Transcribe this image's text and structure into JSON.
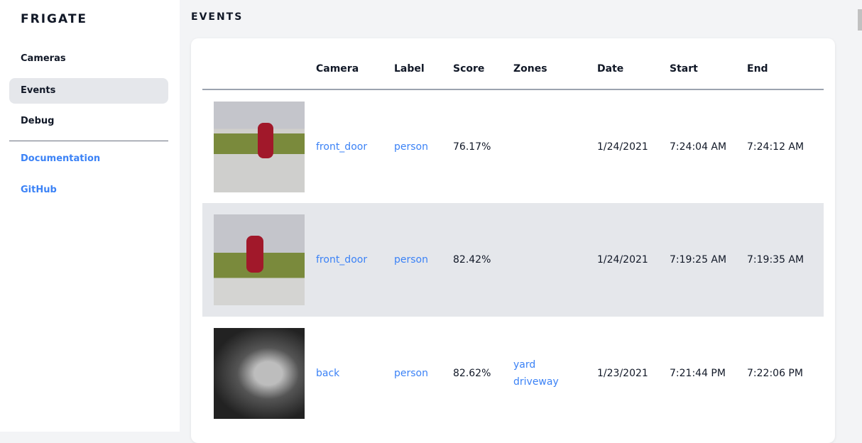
{
  "sidebar": {
    "brand": "FRIGATE",
    "items": [
      {
        "label": "Cameras"
      },
      {
        "label": "Events"
      },
      {
        "label": "Debug"
      }
    ],
    "links": [
      {
        "label": "Documentation"
      },
      {
        "label": "GitHub"
      }
    ]
  },
  "page": {
    "title": "EVENTS"
  },
  "table": {
    "headers": [
      "",
      "Camera",
      "Label",
      "Score",
      "Zones",
      "Date",
      "Start",
      "End"
    ],
    "rows": [
      {
        "camera": "front_door",
        "label": "person",
        "score": "76.17%",
        "zones": [
          "",
          ""
        ],
        "date": "1/24/2021",
        "start": "7:24:04 AM",
        "end": "7:24:12 AM"
      },
      {
        "camera": "front_door",
        "label": "person",
        "score": "82.42%",
        "zones": [
          "",
          ""
        ],
        "date": "1/24/2021",
        "start": "7:19:25 AM",
        "end": "7:19:35 AM"
      },
      {
        "camera": "back",
        "label": "person",
        "score": "82.62%",
        "zones": [
          "yard",
          "driveway"
        ],
        "date": "1/23/2021",
        "start": "7:21:44 PM",
        "end": "7:22:06 PM"
      }
    ]
  },
  "colors": {
    "accent": "#3b82f6",
    "active_bg": "#e5e7eb"
  }
}
